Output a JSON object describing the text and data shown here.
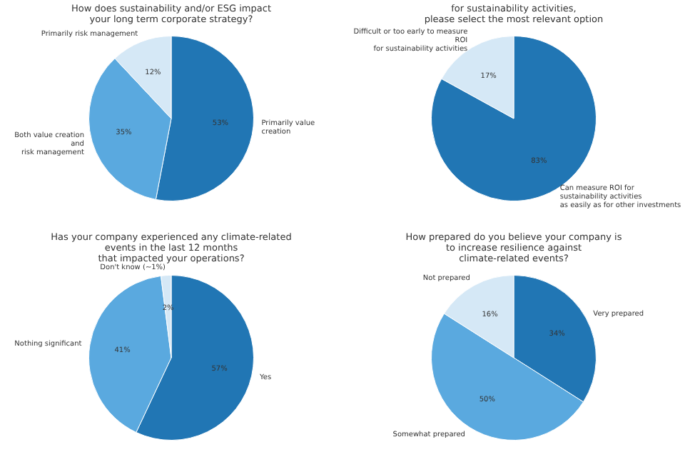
{
  "chart_data": [
    {
      "type": "pie",
      "title": "How does sustainability and/or ESG impact\nyour long term corporate strategy?",
      "categories": [
        "Primarily value creation",
        "Both value creation and\nrisk management",
        "Primarily risk management"
      ],
      "values": [
        53,
        35,
        12
      ],
      "value_labels": [
        "53%",
        "35%",
        "12%"
      ],
      "colors": [
        "#2176b4",
        "#5aa9df",
        "#d5e8f6"
      ],
      "legend": false
    },
    {
      "type": "pie",
      "title": "for sustainability activities,\nplease select the most relevant option",
      "categories": [
        "Can measure ROI for sustainability activities\nas easily as for other investments",
        "Difficult or too early to measure ROI\nfor sustainability activities"
      ],
      "values": [
        83,
        17
      ],
      "value_labels": [
        "83%",
        "17%"
      ],
      "colors": [
        "#2176b4",
        "#d5e8f6"
      ],
      "legend": false
    },
    {
      "type": "pie",
      "title": "Has your company experienced any climate-related\nevents in the last 12 months\nthat impacted your operations?",
      "categories": [
        "Yes",
        "Nothing significant",
        "Don't know (~1%)"
      ],
      "values": [
        57,
        41,
        2
      ],
      "value_labels": [
        "57%",
        "41%",
        "2%"
      ],
      "colors": [
        "#2176b4",
        "#5aa9df",
        "#d5e8f6"
      ],
      "legend": false
    },
    {
      "type": "pie",
      "title": "How prepared do you believe your company is\nto increase resilience against\nclimate-related events?",
      "categories": [
        "Very prepared",
        "Somewhat prepared",
        "Not prepared"
      ],
      "values": [
        34,
        50,
        16
      ],
      "value_labels": [
        "34%",
        "50%",
        "16%"
      ],
      "colors": [
        "#2176b4",
        "#5aa9df",
        "#d5e8f6"
      ],
      "legend": false
    }
  ]
}
